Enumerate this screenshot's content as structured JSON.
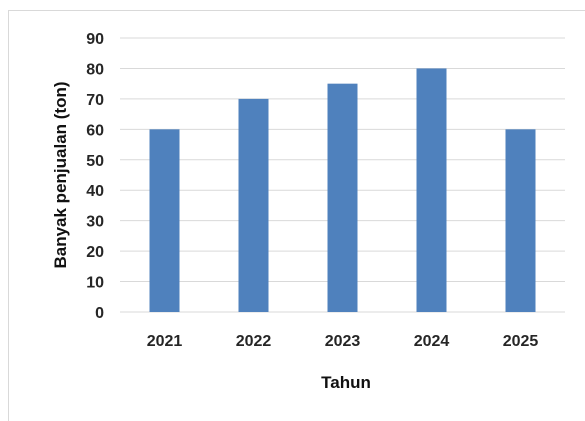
{
  "colors": {
    "bar": "#4f81bd",
    "grid": "#d9d9d9",
    "frame": "#d9d9d9",
    "text": "#262626"
  },
  "chart_data": {
    "type": "bar",
    "categories": [
      "2021",
      "2022",
      "2023",
      "2024",
      "2025"
    ],
    "values": [
      60,
      70,
      75,
      80,
      60
    ],
    "title": "",
    "xlabel": "Tahun",
    "ylabel": "Banyak penjualan (ton)",
    "ylim": [
      0,
      90
    ],
    "yticks": [
      0,
      10,
      20,
      30,
      40,
      50,
      60,
      70,
      80,
      90
    ],
    "grid": true,
    "legend": "none"
  }
}
